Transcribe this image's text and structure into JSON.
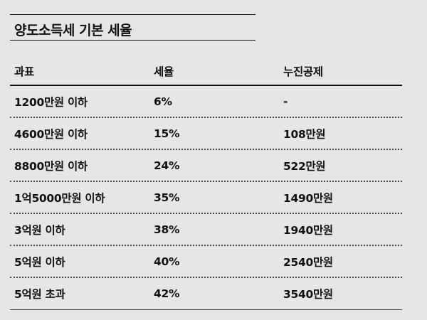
{
  "title": "양도소득세 기본 세율",
  "table": {
    "headers": [
      "과표",
      "세율",
      "누진공제"
    ],
    "rows": [
      [
        "1200만원 이하",
        "6%",
        "-"
      ],
      [
        "4600만원 이하",
        "15%",
        "108만원"
      ],
      [
        "8800만원 이하",
        "24%",
        "522만원"
      ],
      [
        "1억5000만원 이하",
        "35%",
        "1490만원"
      ],
      [
        "3억원 이하",
        "38%",
        "1940만원"
      ],
      [
        "5억원 이하",
        "40%",
        "2540만원"
      ],
      [
        "5억원 초과",
        "42%",
        "3540만원"
      ]
    ]
  }
}
